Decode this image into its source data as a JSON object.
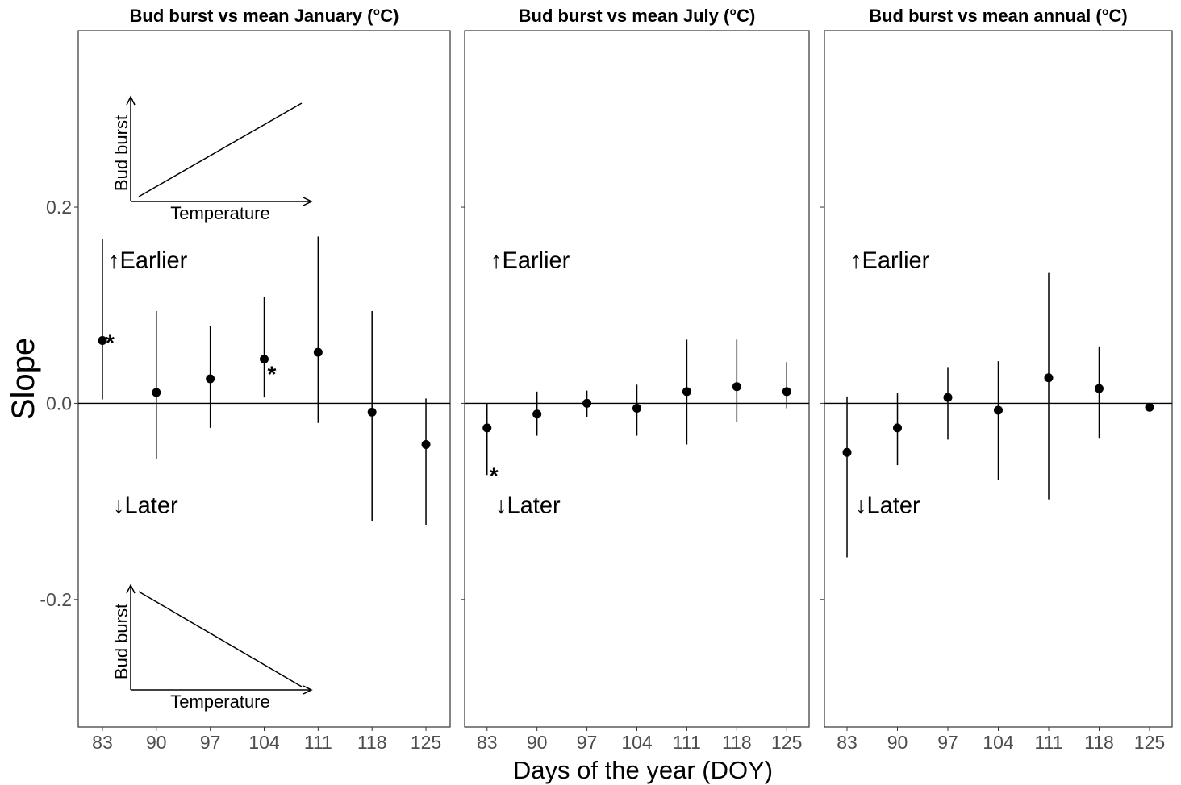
{
  "chart_data": {
    "type": "scatter",
    "ylabel": "Slope",
    "xlabel": "Days of the year (DOY)",
    "x": [
      83,
      90,
      97,
      104,
      111,
      118,
      125
    ],
    "ylim": [
      -0.33,
      0.38
    ],
    "yticks": [
      -0.2,
      0.0,
      0.2
    ],
    "ytick_labels": [
      "-0.2",
      "0.0",
      "0.2"
    ],
    "xtick_labels": [
      "83",
      "90",
      "97",
      "104",
      "111",
      "118",
      "125"
    ],
    "hline": 0,
    "grid": false,
    "annotations": {
      "earlier": "↑Earlier",
      "later": "↓Later",
      "significance_marker": "*"
    },
    "inset": {
      "ylabel": "Bud burst",
      "xlabel": "Temperature"
    },
    "panels": [
      {
        "title": "Bud burst vs mean January (°C)",
        "points": [
          {
            "x": 83,
            "y": 0.064,
            "lo": 0.004,
            "hi": 0.168,
            "sig": true
          },
          {
            "x": 90,
            "y": 0.011,
            "lo": -0.057,
            "hi": 0.094,
            "sig": false
          },
          {
            "x": 97,
            "y": 0.025,
            "lo": -0.025,
            "hi": 0.079,
            "sig": false
          },
          {
            "x": 104,
            "y": 0.045,
            "lo": 0.006,
            "hi": 0.108,
            "sig": true
          },
          {
            "x": 111,
            "y": 0.052,
            "lo": -0.02,
            "hi": 0.17,
            "sig": false
          },
          {
            "x": 118,
            "y": -0.009,
            "lo": -0.12,
            "hi": 0.094,
            "sig": false
          },
          {
            "x": 125,
            "y": -0.042,
            "lo": -0.124,
            "hi": 0.005,
            "sig": false
          }
        ]
      },
      {
        "title": "Bud burst vs mean July (°C)",
        "points": [
          {
            "x": 83,
            "y": -0.025,
            "lo": -0.073,
            "hi": 0.0,
            "sig": true
          },
          {
            "x": 90,
            "y": -0.011,
            "lo": -0.033,
            "hi": 0.012,
            "sig": false
          },
          {
            "x": 97,
            "y": 0.0,
            "lo": -0.014,
            "hi": 0.013,
            "sig": false
          },
          {
            "x": 104,
            "y": -0.005,
            "lo": -0.033,
            "hi": 0.019,
            "sig": false
          },
          {
            "x": 111,
            "y": 0.012,
            "lo": -0.042,
            "hi": 0.065,
            "sig": false
          },
          {
            "x": 118,
            "y": 0.017,
            "lo": -0.019,
            "hi": 0.065,
            "sig": false
          },
          {
            "x": 125,
            "y": 0.012,
            "lo": -0.005,
            "hi": 0.042,
            "sig": false
          }
        ]
      },
      {
        "title": "Bud burst vs mean annual (°C)",
        "points": [
          {
            "x": 83,
            "y": -0.05,
            "lo": -0.157,
            "hi": 0.007,
            "sig": false
          },
          {
            "x": 90,
            "y": -0.025,
            "lo": -0.063,
            "hi": 0.011,
            "sig": false
          },
          {
            "x": 97,
            "y": 0.006,
            "lo": -0.037,
            "hi": 0.037,
            "sig": false
          },
          {
            "x": 104,
            "y": -0.007,
            "lo": -0.078,
            "hi": 0.043,
            "sig": false
          },
          {
            "x": 111,
            "y": 0.026,
            "lo": -0.098,
            "hi": 0.133,
            "sig": false
          },
          {
            "x": 118,
            "y": 0.015,
            "lo": -0.036,
            "hi": 0.058,
            "sig": false
          },
          {
            "x": 125,
            "y": -0.004,
            "lo": -0.008,
            "hi": 0.0,
            "sig": false
          }
        ]
      }
    ]
  }
}
